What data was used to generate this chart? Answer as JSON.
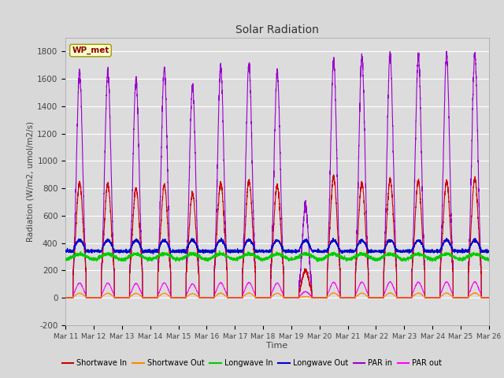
{
  "title": "Solar Radiation",
  "ylabel": "Radiation (W/m2, umol/m2/s)",
  "xlabel": "Time",
  "ylim": [
    -200,
    1900
  ],
  "yticks": [
    -200,
    0,
    200,
    400,
    600,
    800,
    1000,
    1200,
    1400,
    1600,
    1800
  ],
  "fig_bg_color": "#d8d8d8",
  "plot_bg_color": "#dcdcdc",
  "station_label": "WP_met",
  "x_tick_labels": [
    "Mar 11",
    "Mar 12",
    "Mar 13",
    "Mar 14",
    "Mar 15",
    "Mar 16",
    "Mar 17",
    "Mar 18",
    "Mar 19",
    "Mar 20",
    "Mar 21",
    "Mar 22",
    "Mar 23",
    "Mar 24",
    "Mar 25",
    "Mar 26"
  ],
  "legend_entries": [
    {
      "label": "Shortwave In",
      "color": "#cc0000"
    },
    {
      "label": "Shortwave Out",
      "color": "#ff8800"
    },
    {
      "label": "Longwave In",
      "color": "#00cc00"
    },
    {
      "label": "Longwave Out",
      "color": "#0000cc"
    },
    {
      "label": "PAR in",
      "color": "#9900cc"
    },
    {
      "label": "PAR out",
      "color": "#ff00ff"
    }
  ],
  "num_days": 15,
  "points_per_day": 288
}
